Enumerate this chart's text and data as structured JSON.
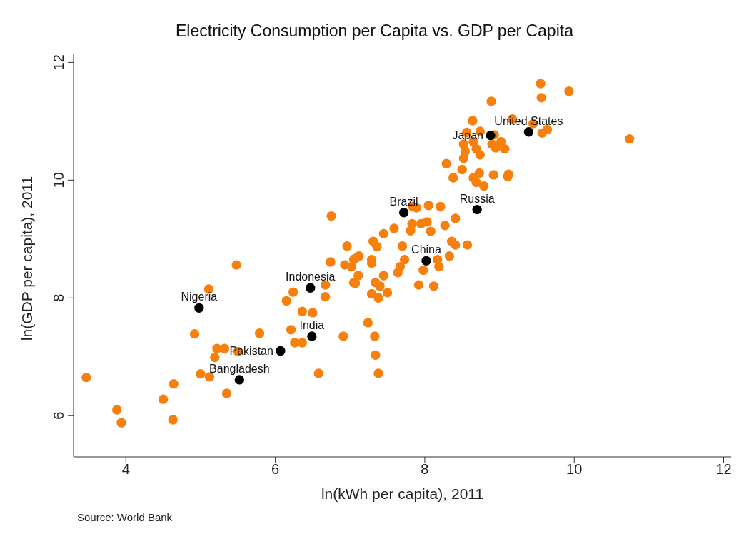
{
  "chart_data": {
    "type": "scatter",
    "title": "Electricity Consumption per Capita vs. GDP per Capita",
    "xlabel": "ln(kWh per capita), 2011",
    "ylabel": "ln(GDP per capita), 2011",
    "xlim": [
      3.3,
      12.1
    ],
    "ylim": [
      5.3,
      12.15
    ],
    "xticks": [
      4,
      6,
      8,
      10,
      12
    ],
    "yticks": [
      6,
      8,
      10,
      12
    ],
    "grid": false,
    "marker": "circle",
    "series": [
      {
        "color": "#f77f0b",
        "x": [
          3.47,
          3.88,
          3.94,
          4.64,
          4.63,
          4.5,
          4.92,
          5.11,
          5.48,
          5.22,
          5.32,
          5.19,
          5.5,
          5.0,
          5.12,
          5.35,
          6.75,
          6.96,
          6.74,
          6.93,
          7.05,
          7.05,
          6.67,
          6.67,
          6.24,
          6.15,
          6.36,
          6.5,
          6.21,
          6.26,
          6.36,
          6.91,
          5.79,
          6.58,
          7.02,
          7.12,
          7.07,
          7.29,
          7.29,
          7.11,
          7.07,
          7.31,
          7.36,
          7.45,
          7.59,
          7.45,
          7.34,
          7.4,
          7.5,
          7.29,
          7.38,
          7.81,
          7.83,
          7.95,
          8.03,
          8.08,
          8.27,
          8.41,
          7.89,
          8.05,
          8.21,
          7.84,
          7.7,
          7.73,
          7.67,
          7.64,
          7.98,
          8.19,
          8.17,
          8.33,
          8.36,
          8.41,
          8.57,
          7.92,
          8.12,
          7.24,
          7.33,
          7.34,
          7.38,
          8.29,
          8.5,
          8.38,
          8.65,
          8.69,
          8.73,
          8.92,
          9.11,
          8.79,
          9.55,
          9.56,
          9.93,
          8.89,
          8.64,
          8.56,
          8.74,
          8.93,
          9.02,
          9.07,
          8.95,
          8.9,
          8.52,
          8.54,
          8.69,
          8.74,
          8.65,
          8.52,
          9.12,
          9.64,
          9.57,
          9.17,
          9.45,
          10.74
        ],
        "values": [
          6.65,
          6.1,
          5.88,
          6.54,
          5.93,
          6.28,
          7.39,
          8.15,
          8.56,
          7.14,
          7.14,
          6.99,
          7.09,
          6.71,
          6.66,
          6.38,
          9.39,
          8.88,
          8.61,
          8.56,
          8.65,
          8.26,
          8.22,
          8.02,
          8.1,
          7.95,
          7.77,
          7.75,
          7.46,
          7.24,
          7.24,
          7.35,
          7.4,
          6.72,
          8.53,
          8.71,
          8.67,
          8.65,
          8.59,
          8.38,
          8.25,
          8.96,
          8.87,
          9.09,
          9.18,
          8.38,
          8.26,
          8.2,
          8.09,
          8.07,
          8.0,
          9.14,
          9.26,
          9.26,
          9.29,
          9.13,
          9.23,
          9.35,
          9.53,
          9.57,
          9.55,
          9.55,
          8.88,
          8.65,
          8.53,
          8.43,
          8.47,
          8.53,
          8.65,
          8.71,
          8.96,
          8.9,
          8.9,
          8.22,
          8.2,
          7.58,
          7.35,
          7.03,
          6.72,
          10.28,
          10.18,
          10.04,
          10.04,
          9.96,
          10.12,
          10.09,
          10.06,
          9.9,
          11.64,
          11.4,
          11.51,
          11.34,
          11.01,
          10.81,
          10.83,
          10.77,
          10.65,
          10.53,
          10.55,
          10.61,
          10.61,
          10.49,
          10.53,
          10.43,
          10.65,
          10.37,
          10.1,
          10.86,
          10.8,
          11.04,
          10.96,
          10.7
        ]
      },
      {
        "color": "#000000",
        "x": [
          4.98,
          6.47,
          6.49,
          6.07,
          5.52,
          7.72,
          8.02,
          8.7,
          8.88,
          9.39
        ],
        "values": [
          7.83,
          8.17,
          7.35,
          7.1,
          6.61,
          9.45,
          8.63,
          9.5,
          10.76,
          10.82
        ]
      }
    ],
    "annotations": [
      {
        "text": "Nigeria",
        "x": 4.98,
        "y": 7.83
      },
      {
        "text": "Indonesia",
        "x": 6.47,
        "y": 8.17
      },
      {
        "text": "India",
        "x": 6.49,
        "y": 7.35
      },
      {
        "text": "Pakistan",
        "x": 6.07,
        "y": 7.1
      },
      {
        "text": "Bangladesh",
        "x": 5.52,
        "y": 6.61
      },
      {
        "text": "Brazil",
        "x": 7.72,
        "y": 9.45
      },
      {
        "text": "China",
        "x": 8.02,
        "y": 8.63
      },
      {
        "text": "Russia",
        "x": 8.7,
        "y": 9.5
      },
      {
        "text": "Japan",
        "x": 8.88,
        "y": 10.76
      },
      {
        "text": "United States",
        "x": 9.39,
        "y": 10.82
      },
      "Source: World Bank"
    ]
  }
}
